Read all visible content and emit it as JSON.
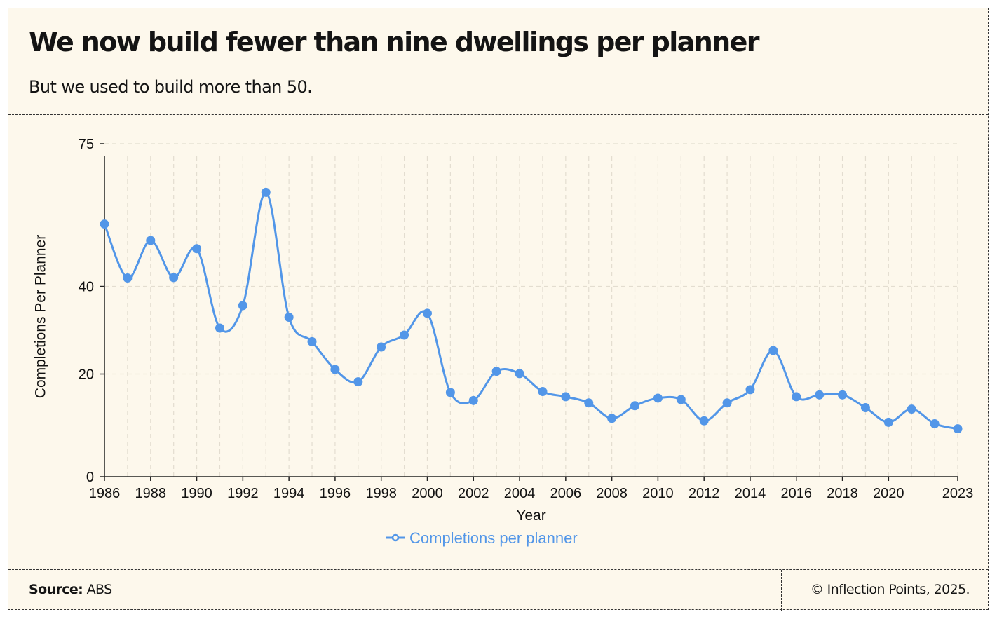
{
  "header": {
    "title": "We now build fewer than nine dwellings per planner",
    "subtitle": "But we used to build more than 50."
  },
  "footer": {
    "source_label": "Source:",
    "source_value": " ABS",
    "copyright": "© Inflection Points, 2025."
  },
  "colors": {
    "series": "#5296e8",
    "background": "#fdf8ec",
    "grid": "#e3ddd0"
  },
  "chart_data": {
    "type": "line",
    "title": "We now build fewer than nine dwellings per planner",
    "subtitle": "But we used to build more than 50.",
    "xlabel": "Year",
    "ylabel": "Completions Per Planner",
    "legend": "bottom-center",
    "grid": true,
    "xlim": [
      1986,
      2023
    ],
    "ylim": [
      0,
      75
    ],
    "x_ticks": [
      1986,
      1988,
      1990,
      1992,
      1994,
      1996,
      1998,
      2000,
      2002,
      2004,
      2006,
      2008,
      2010,
      2012,
      2014,
      2016,
      2018,
      2020,
      2023
    ],
    "y_ticks": [
      0,
      20,
      40,
      75
    ],
    "series": [
      {
        "name": "Completions per planner",
        "x": [
          1986,
          1987,
          1988,
          1989,
          1990,
          1991,
          1992,
          1993,
          1994,
          1995,
          1996,
          1997,
          1998,
          1999,
          2000,
          2001,
          2002,
          2003,
          2004,
          2005,
          2006,
          2007,
          2008,
          2009,
          2010,
          2011,
          2012,
          2013,
          2014,
          2015,
          2016,
          2017,
          2018,
          2019,
          2020,
          2021,
          2022,
          2023
        ],
        "values": [
          55,
          42,
          51,
          42.1,
          49,
          30.3,
          35.5,
          62.8,
          32.8,
          27.2,
          21,
          18.3,
          26,
          28.7,
          33.7,
          16,
          14.3,
          20.6,
          20.1,
          16.2,
          15.1,
          13.8,
          10.6,
          13.2,
          14.8,
          14.5,
          10.1,
          13.8,
          16.6,
          25.2,
          15.1,
          15.5,
          15.5,
          12.8,
          9.8,
          12.5,
          9.5,
          8.5
        ]
      }
    ]
  }
}
